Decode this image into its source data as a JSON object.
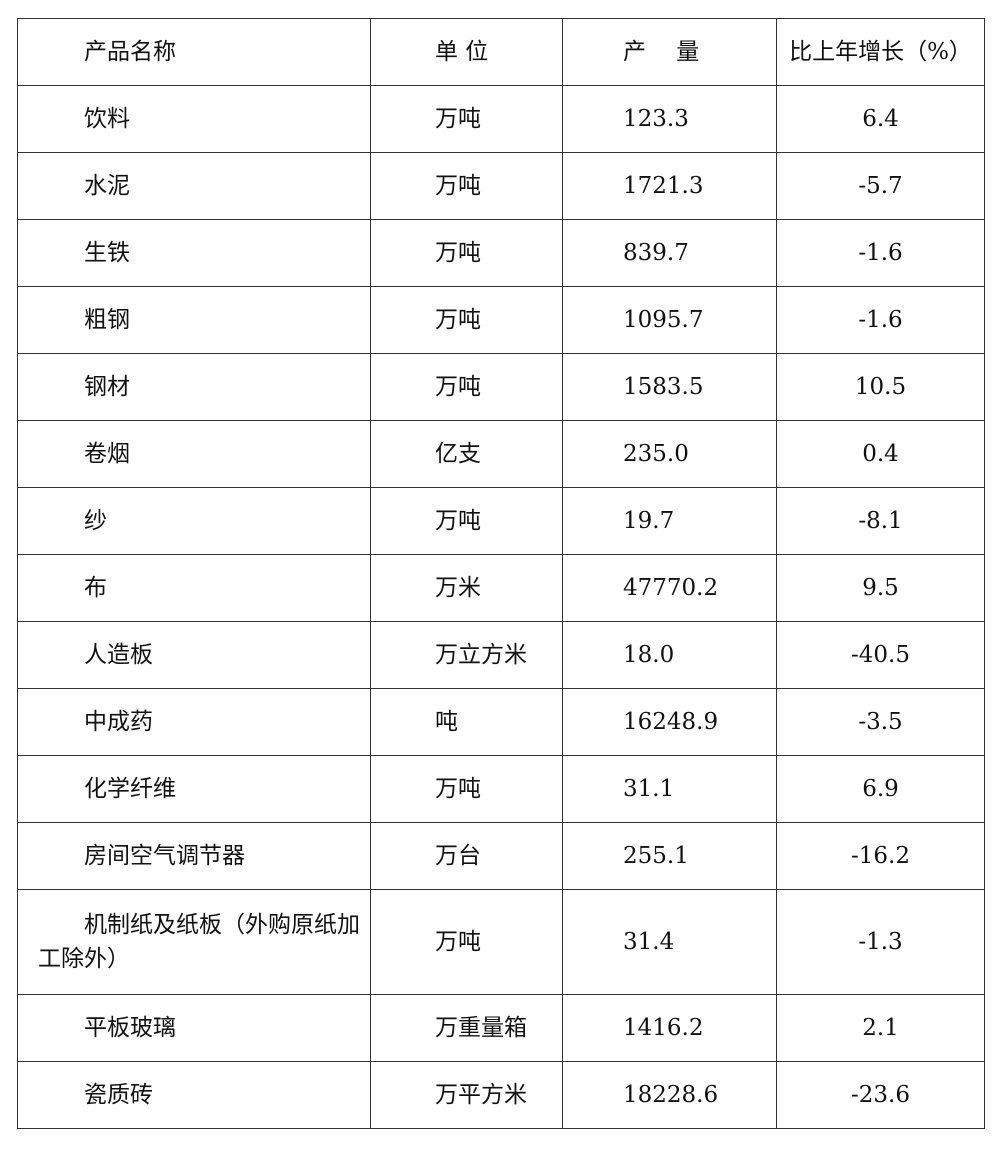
{
  "table": {
    "headers": [
      "产品名称",
      "单 位",
      "产　 量",
      "比上年增长（%）"
    ],
    "rows": [
      {
        "name": "饮料",
        "unit": "万吨",
        "output": "123.3",
        "growth": "6.4"
      },
      {
        "name": "水泥",
        "unit": "万吨",
        "output": "1721.3",
        "growth": "-5.7"
      },
      {
        "name": "生铁",
        "unit": "万吨",
        "output": "839.7",
        "growth": "-1.6"
      },
      {
        "name": "粗钢",
        "unit": "万吨",
        "output": "1095.7",
        "growth": "-1.6"
      },
      {
        "name": "钢材",
        "unit": "万吨",
        "output": "1583.5",
        "growth": "10.5"
      },
      {
        "name": "卷烟",
        "unit": "亿支",
        "output": "235.0",
        "growth": "0.4"
      },
      {
        "name": "纱",
        "unit": "万吨",
        "output": "19.7",
        "growth": "-8.1"
      },
      {
        "name": "布",
        "unit": "万米",
        "output": "47770.2",
        "growth": "9.5"
      },
      {
        "name": "人造板",
        "unit": "万立方米",
        "output": "18.0",
        "growth": "-40.5"
      },
      {
        "name": "中成药",
        "unit": "吨",
        "output": "16248.9",
        "growth": "-3.5"
      },
      {
        "name": "化学纤维",
        "unit": "万吨",
        "output": "31.1",
        "growth": "6.9"
      },
      {
        "name": "房间空气调节器",
        "unit": "万台",
        "output": "255.1",
        "growth": "-16.2"
      },
      {
        "name": "机制纸及纸板（外购原纸加工除外）",
        "unit": "万吨",
        "output": "31.4",
        "growth": "-1.3"
      },
      {
        "name": "平板玻璃",
        "unit": "万重量箱",
        "output": "1416.2",
        "growth": "2.1"
      },
      {
        "name": "瓷质砖",
        "unit": "万平方米",
        "output": "18228.6",
        "growth": "-23.6"
      }
    ]
  }
}
